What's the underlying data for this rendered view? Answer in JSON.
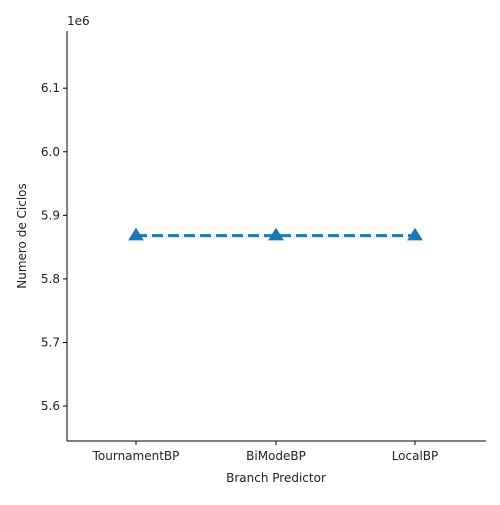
{
  "chart_data": {
    "type": "line",
    "title": "",
    "xlabel": "Branch Predictor",
    "ylabel": "Numero de Ciclos",
    "y_offset_label": "1e6",
    "categories": [
      "TournamentBP",
      "BiModeBP",
      "LocalBP"
    ],
    "series": [
      {
        "values": [
          5868000,
          5868000,
          5868000
        ],
        "marker": "triangle-up",
        "linestyle": "dashed",
        "color": "#1f77b4"
      }
    ],
    "ylim": [
      5545000,
      6190000
    ],
    "yticks": [
      5600000,
      5700000,
      5800000,
      5900000,
      6000000,
      6100000
    ],
    "ytick_labels": [
      "5.6",
      "5.7",
      "5.8",
      "5.9",
      "6.0",
      "6.1"
    ],
    "grid": false,
    "legend": "none"
  }
}
